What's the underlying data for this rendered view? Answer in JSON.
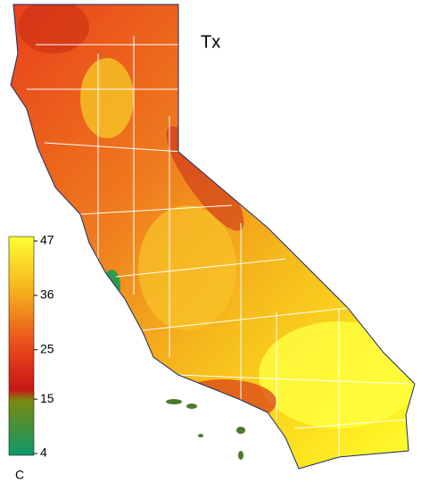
{
  "title": "Tx",
  "colorbar": {
    "lim": [
      4,
      47
    ],
    "ticks": [
      4,
      15,
      25,
      36,
      47
    ],
    "unit": "C"
  }
}
